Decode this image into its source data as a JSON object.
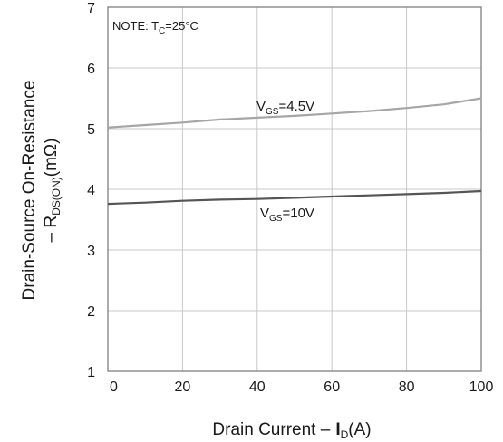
{
  "chart_data": {
    "type": "line",
    "note": {
      "prefix": "NOTE: T",
      "sub": "C",
      "suffix": "=25°C"
    },
    "xlabel": {
      "prefix": "Drain Current  ",
      "dash": "–",
      "I": "I",
      "sub": "D",
      "suffix": "(A)"
    },
    "ylabel": {
      "line1": "Drain-Source On-Resistance",
      "line2_prefix": "– R",
      "line2_sub": "DS(ON)",
      "line2_suffix": "(mΩ)"
    },
    "xlim": [
      0,
      100
    ],
    "ylim": [
      1,
      7
    ],
    "xticks": [
      "0",
      "20",
      "40",
      "60",
      "80",
      "100"
    ],
    "yticks": [
      "1",
      "2",
      "3",
      "4",
      "5",
      "6",
      "7"
    ],
    "grid": true,
    "series": [
      {
        "name": "VGS=4.5V",
        "label": {
          "prefix": "V",
          "sub": "GS",
          "suffix": "=4.5V"
        },
        "color": "#a6a6a6",
        "x": [
          0,
          10,
          20,
          30,
          40,
          50,
          60,
          70,
          80,
          90,
          100
        ],
        "y": [
          5.02,
          5.06,
          5.1,
          5.15,
          5.18,
          5.21,
          5.25,
          5.29,
          5.34,
          5.4,
          5.5
        ]
      },
      {
        "name": "VGS=10V",
        "label": {
          "prefix": "V",
          "sub": "GS",
          "suffix": "=10V"
        },
        "color": "#555555",
        "x": [
          0,
          10,
          20,
          30,
          40,
          50,
          60,
          70,
          80,
          90,
          100
        ],
        "y": [
          3.76,
          3.78,
          3.81,
          3.83,
          3.84,
          3.86,
          3.88,
          3.9,
          3.92,
          3.94,
          3.97
        ]
      }
    ]
  }
}
